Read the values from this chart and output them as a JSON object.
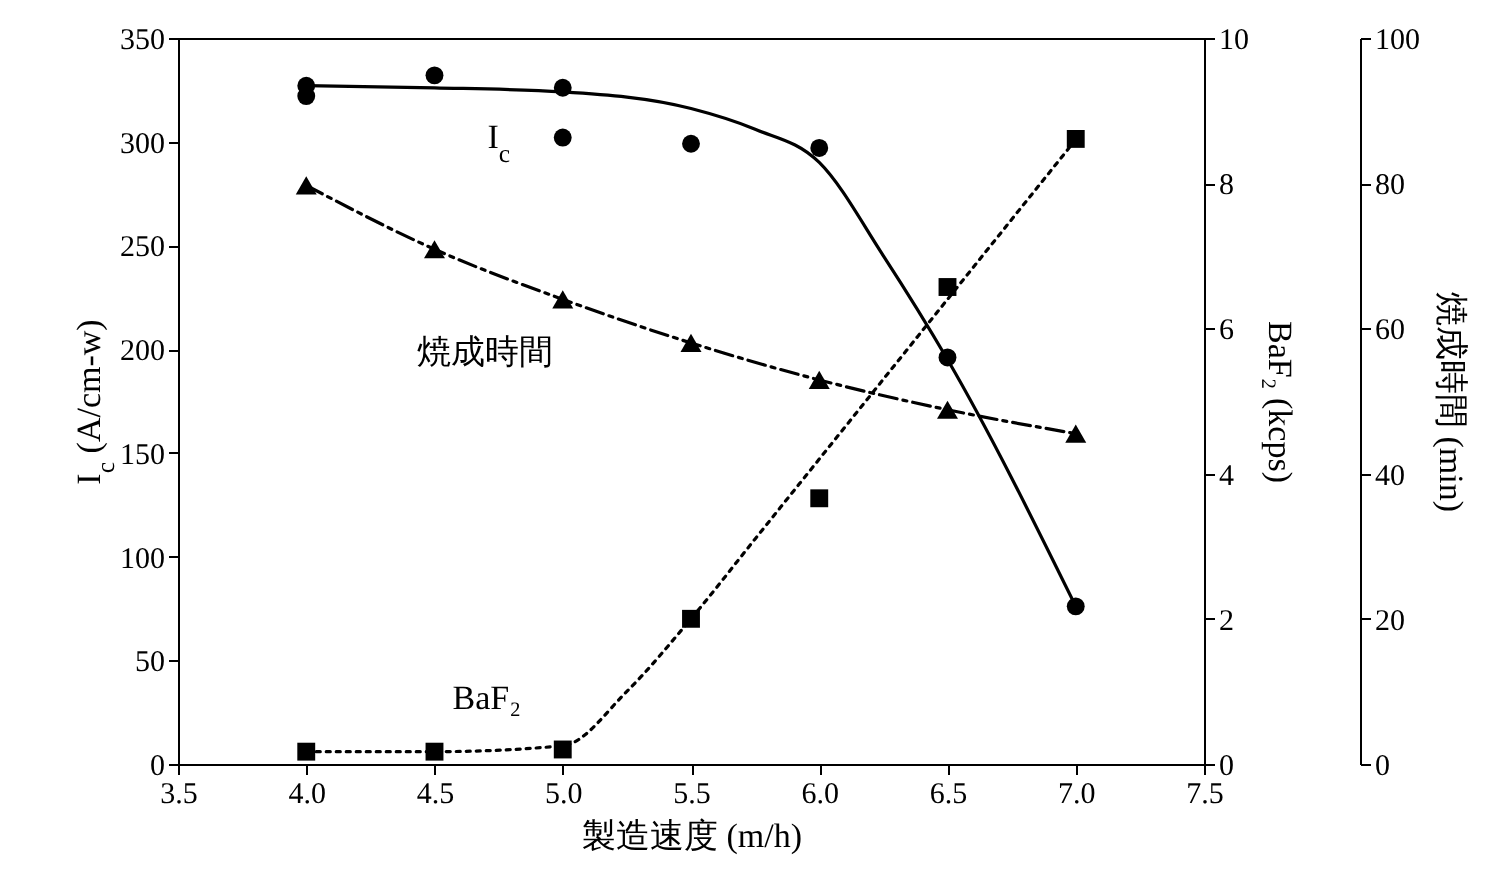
{
  "chart_data": {
    "type": "scatter",
    "xlabel": "製造速度 (m/h)",
    "ylabel": "I$_{c}$ (A/cm-w)",
    "y2label": "BaF₂ (kcps)",
    "y3label": "焼成時間 (min)",
    "xlim": [
      3.5,
      7.5
    ],
    "xticks": [
      {
        "value": 3.5,
        "label": "3.5"
      },
      {
        "value": 4,
        "label": "4.0"
      },
      {
        "value": 4.5,
        "label": "4.5"
      },
      {
        "value": 5,
        "label": "5.0"
      },
      {
        "value": 5.5,
        "label": "5.5"
      },
      {
        "value": 6,
        "label": "6.0"
      },
      {
        "value": 6.5,
        "label": "6.5"
      },
      {
        "value": 7,
        "label": "7.0"
      },
      {
        "value": 7.5,
        "label": "7.5"
      }
    ],
    "ylim": [
      0,
      350
    ],
    "yticks": [
      0,
      50,
      100,
      150,
      200,
      250,
      300,
      350
    ],
    "y2lim": [
      0,
      10
    ],
    "y2ticks": [
      0,
      2,
      4,
      6,
      8,
      10
    ],
    "y3lim": [
      0,
      100
    ],
    "y3ticks": [
      0,
      20,
      40,
      60,
      80,
      100
    ],
    "grid": false,
    "series": [
      {
        "name": "I$_{c}$",
        "type": "scatter",
        "marker": "circle",
        "color": "#000000",
        "x": [
          4.0,
          4.0,
          4.5,
          5.0,
          5.0,
          5.5,
          6.0,
          6.5,
          7.0
        ],
        "values": [
          327,
          322,
          332,
          326,
          302,
          299,
          297,
          196,
          76
        ]
      },
      {
        "type": "line",
        "marker": "none",
        "line_style": "solid",
        "color": "#000000",
        "x": [
          4.0,
          4.5,
          5.0,
          5.5,
          5.75,
          6.0,
          6.25,
          6.5,
          7.0
        ],
        "values": [
          327,
          326,
          324,
          316,
          306,
          290,
          245,
          195,
          76
        ]
      },
      {
        "name": "焼成時間",
        "type": "line",
        "marker": "triangle",
        "line_style": "dashed",
        "axis": "y3",
        "color": "#000000",
        "x": [
          4.0,
          4.5,
          5.0,
          5.5,
          6.0,
          6.5,
          7.0
        ],
        "values": [
          79.7,
          70.9,
          64,
          58,
          52.9,
          48.8,
          45.5
        ]
      },
      {
        "name": "BaF₂",
        "type": "scatter",
        "marker": "square",
        "axis": "y2",
        "color": "#000000",
        "x": [
          4.0,
          4.5,
          5.0,
          5.5,
          6.0,
          6.5,
          7.0
        ],
        "values": [
          0.17,
          0.17,
          0.2,
          2.0,
          3.66,
          6.57,
          8.61
        ]
      },
      {
        "type": "line",
        "marker": "none",
        "line_style": "dotted",
        "axis": "y2",
        "color": "#000000",
        "x": [
          4.0,
          4.5,
          5.0,
          5.25,
          5.5,
          5.75,
          6.0,
          6.25,
          6.5,
          6.75,
          7.0
        ],
        "values": [
          0.17,
          0.17,
          0.25,
          1.0,
          2.0,
          3.1,
          4.2,
          5.3,
          6.4,
          7.5,
          8.6
        ]
      }
    ]
  }
}
